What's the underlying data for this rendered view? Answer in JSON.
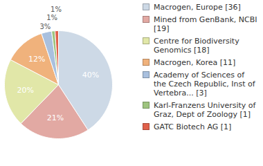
{
  "chart_data": {
    "type": "pie",
    "categories": [
      "Macrogen, Europe [36]",
      "Mined from GenBank, NCBI [19]",
      "Centre for Biodiversity Genomics [18]",
      "Macrogen, Korea [11]",
      "Academy of Sciences of the Czech Republic, Inst of Vertebra... [3]",
      "Karl-Franzens University of Graz, Dept of Zoology [1]",
      "GATC Biotech AG [1]"
    ],
    "values": [
      40,
      21,
      20,
      12,
      3,
      1,
      1
    ],
    "value_labels": [
      "40%",
      "21%",
      "20%",
      "12%",
      "3%",
      "1%",
      "1%"
    ],
    "colors": [
      "#cdd9e6",
      "#e2a9a3",
      "#e1e7a8",
      "#f0b27c",
      "#a9c0de",
      "#9ec47f",
      "#e0614b"
    ],
    "data_labels": true,
    "legend": "right"
  }
}
